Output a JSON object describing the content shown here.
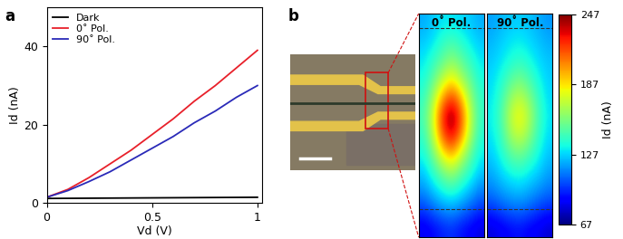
{
  "chart_data": [
    {
      "panel": "a",
      "type": "line",
      "x_label": "Vd (V)",
      "y_label": "Id (nA)",
      "x": [
        0,
        0.1,
        0.2,
        0.3,
        0.4,
        0.5,
        0.6,
        0.7,
        0.8,
        0.9,
        1.0
      ],
      "series": [
        {
          "name": "Dark",
          "color": "#000000",
          "values": [
            1.2,
            1.23,
            1.26,
            1.29,
            1.32,
            1.35,
            1.38,
            1.41,
            1.44,
            1.47,
            1.5
          ]
        },
        {
          "name": "0˚ Pol.",
          "color": "#e8202a",
          "values": [
            1.5,
            3.5,
            6.5,
            10,
            13.5,
            17.5,
            21.5,
            26,
            30,
            34.5,
            39
          ]
        },
        {
          "name": "90˚ Pol.",
          "color": "#2a2ab8",
          "values": [
            1.5,
            3.2,
            5.5,
            8,
            11,
            14,
            17,
            20.5,
            23.5,
            27,
            30
          ]
        }
      ],
      "xlim": [
        0,
        1.02
      ],
      "xticks": [
        0,
        0.5,
        {
          "value": 1,
          "label": "1"
        }
      ],
      "ylim": [
        0,
        50
      ],
      "yticks": [
        0,
        20,
        40
      ],
      "legend": "upper left"
    },
    {
      "panel": "b",
      "type": "heatmap",
      "tick_labels": false,
      "maps": [
        {
          "title": "0˚ Pol.",
          "cells": [
            [
              120,
              125,
              130,
              130,
              128,
              125,
              120
            ],
            [
              125,
              130,
              140,
              145,
              138,
              130,
              125
            ],
            [
              130,
              140,
              150,
              160,
              150,
              140,
              130
            ],
            [
              135,
              150,
              170,
              185,
              165,
              150,
              135
            ],
            [
              140,
              165,
              200,
              220,
              195,
              160,
              140
            ],
            [
              145,
              175,
              225,
              247,
              215,
              170,
              140
            ],
            [
              140,
              170,
              215,
              235,
              205,
              165,
              138
            ],
            [
              135,
              155,
              185,
              200,
              175,
              150,
              132
            ],
            [
              125,
              140,
              155,
              165,
              150,
              138,
              125
            ],
            [
              115,
              125,
              135,
              140,
              132,
              122,
              112
            ],
            [
              100,
              108,
              115,
              118,
              112,
              105,
              98
            ],
            [
              85,
              90,
              95,
              98,
              92,
              88,
              82
            ]
          ]
        },
        {
          "title": "90˚ Pol.",
          "cells": [
            [
              118,
              122,
              125,
              126,
              124,
              120,
              116
            ],
            [
              122,
              126,
              130,
              132,
              128,
              124,
              120
            ],
            [
              125,
              130,
              136,
              140,
              135,
              128,
              124
            ],
            [
              128,
              136,
              148,
              155,
              145,
              134,
              126
            ],
            [
              130,
              142,
              162,
              172,
              158,
              140,
              128
            ],
            [
              132,
              146,
              172,
              185,
              168,
              144,
              130
            ],
            [
              130,
              142,
              165,
              175,
              160,
              140,
              128
            ],
            [
              126,
              136,
              150,
              155,
              146,
              134,
              124
            ],
            [
              120,
              128,
              135,
              138,
              132,
              126,
              118
            ],
            [
              112,
              118,
              122,
              124,
              120,
              115,
              110
            ],
            [
              98,
              104,
              108,
              110,
              106,
              100,
              96
            ],
            [
              82,
              86,
              90,
              92,
              88,
              85,
              80
            ]
          ]
        }
      ],
      "colorbar": {
        "label": "Id (nA)",
        "range": [
          67,
          247
        ],
        "ticks": [
          67,
          127,
          187,
          247
        ]
      }
    }
  ]
}
